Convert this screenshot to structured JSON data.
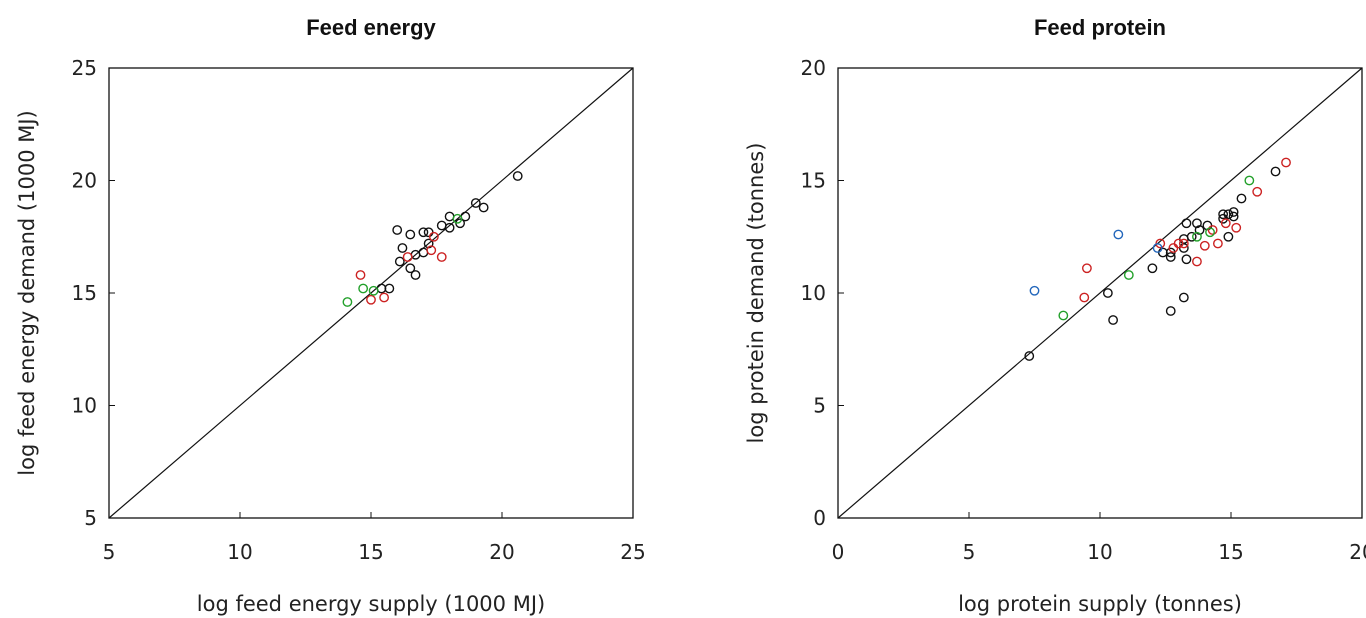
{
  "chart_data": [
    {
      "type": "scatter",
      "title": "Feed energy",
      "xlabel": "log feed energy supply (1000 MJ)",
      "ylabel": "log feed energy demand (1000 MJ)",
      "xlim": [
        5,
        25
      ],
      "ylim": [
        5,
        25
      ],
      "xticks": [
        "5",
        "10",
        "15",
        "20",
        "25"
      ],
      "yticks": [
        "5",
        "10",
        "15",
        "20",
        "25"
      ],
      "reference_line": "y = x",
      "marker": "open circle",
      "grid": false,
      "legend": "none",
      "series": [
        {
          "color": "#111111",
          "points": [
            [
              20.6,
              20.2
            ],
            [
              19.3,
              18.8
            ],
            [
              19.0,
              19.0
            ],
            [
              18.6,
              18.4
            ],
            [
              18.4,
              18.1
            ],
            [
              18.0,
              18.4
            ],
            [
              18.0,
              17.9
            ],
            [
              17.7,
              18.0
            ],
            [
              17.2,
              17.7
            ],
            [
              17.2,
              17.2
            ],
            [
              17.0,
              17.7
            ],
            [
              17.0,
              16.8
            ],
            [
              16.7,
              16.7
            ],
            [
              16.5,
              17.6
            ],
            [
              16.5,
              16.1
            ],
            [
              16.7,
              15.8
            ],
            [
              16.2,
              17.0
            ],
            [
              16.1,
              16.4
            ],
            [
              16.0,
              17.8
            ],
            [
              15.7,
              15.2
            ],
            [
              15.4,
              15.2
            ]
          ]
        },
        {
          "color": "#cc2222",
          "points": [
            [
              17.7,
              16.6
            ],
            [
              17.4,
              17.5
            ],
            [
              17.3,
              16.9
            ],
            [
              16.4,
              16.6
            ],
            [
              14.6,
              15.8
            ],
            [
              15.0,
              14.7
            ],
            [
              15.5,
              14.8
            ]
          ]
        },
        {
          "color": "#22a02a",
          "points": [
            [
              18.3,
              18.3
            ],
            [
              14.7,
              15.2
            ],
            [
              15.1,
              15.1
            ],
            [
              14.1,
              14.6
            ]
          ]
        }
      ]
    },
    {
      "type": "scatter",
      "title": "Feed protein",
      "xlabel": "log protein supply (tonnes)",
      "ylabel": "log protein demand (tonnes)",
      "xlim": [
        0,
        20
      ],
      "ylim": [
        0,
        20
      ],
      "xticks": [
        "0",
        "5",
        "10",
        "15",
        "20"
      ],
      "yticks": [
        "0",
        "5",
        "10",
        "15",
        "20"
      ],
      "reference_line": "y = x",
      "marker": "open circle",
      "grid": false,
      "legend": "none",
      "series": [
        {
          "color": "#111111",
          "points": [
            [
              7.3,
              7.2
            ],
            [
              10.3,
              10.0
            ],
            [
              10.5,
              8.8
            ],
            [
              12.0,
              11.1
            ],
            [
              12.4,
              11.8
            ],
            [
              12.7,
              11.6
            ],
            [
              12.7,
              11.8
            ],
            [
              12.7,
              9.2
            ],
            [
              13.2,
              9.8
            ],
            [
              13.2,
              12.0
            ],
            [
              13.3,
              11.5
            ],
            [
              13.2,
              12.4
            ],
            [
              13.3,
              13.1
            ],
            [
              13.5,
              12.5
            ],
            [
              13.7,
              13.1
            ],
            [
              13.8,
              12.8
            ],
            [
              14.1,
              13.0
            ],
            [
              14.7,
              13.3
            ],
            [
              14.7,
              13.5
            ],
            [
              14.9,
              12.5
            ],
            [
              14.9,
              13.5
            ],
            [
              15.1,
              13.4
            ],
            [
              15.1,
              13.6
            ],
            [
              15.4,
              14.2
            ],
            [
              16.7,
              15.4
            ]
          ]
        },
        {
          "color": "#cc2222",
          "points": [
            [
              9.5,
              11.1
            ],
            [
              9.4,
              9.8
            ],
            [
              12.3,
              12.2
            ],
            [
              12.8,
              12.0
            ],
            [
              13.0,
              12.2
            ],
            [
              13.2,
              12.2
            ],
            [
              13.7,
              11.4
            ],
            [
              14.0,
              12.1
            ],
            [
              14.3,
              12.8
            ],
            [
              14.5,
              12.2
            ],
            [
              14.8,
              13.1
            ],
            [
              15.2,
              12.9
            ],
            [
              16.0,
              14.5
            ],
            [
              17.1,
              15.8
            ]
          ]
        },
        {
          "color": "#22a02a",
          "points": [
            [
              8.6,
              9.0
            ],
            [
              11.1,
              10.8
            ],
            [
              13.7,
              12.5
            ],
            [
              14.2,
              12.7
            ],
            [
              15.7,
              15.0
            ]
          ]
        },
        {
          "color": "#2266bb",
          "points": [
            [
              7.5,
              10.1
            ],
            [
              10.7,
              12.6
            ],
            [
              12.2,
              12.0
            ]
          ]
        }
      ]
    }
  ]
}
